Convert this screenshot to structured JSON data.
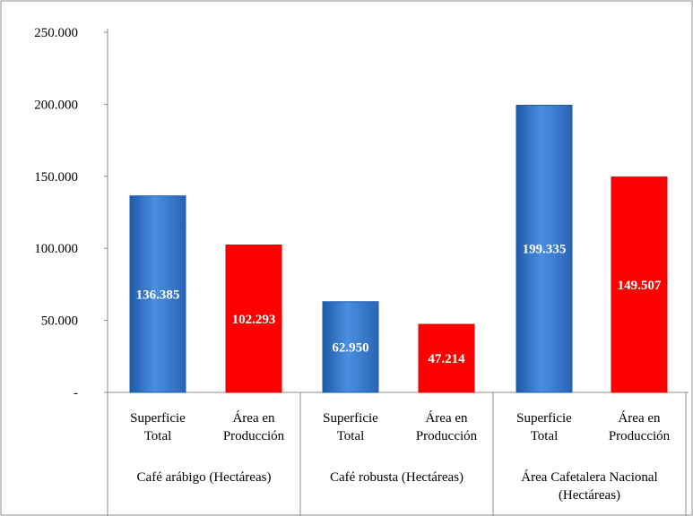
{
  "chart_data": {
    "type": "bar",
    "title": "",
    "xlabel": "",
    "ylabel": "",
    "ylim": [
      0,
      250000
    ],
    "yticks": [
      0,
      50000,
      100000,
      150000,
      200000,
      250000
    ],
    "ytick_labels": [
      "-",
      "50.000",
      "100.000",
      "150.000",
      "200.000",
      "250.000"
    ],
    "grid": false,
    "legend": "none",
    "groups": [
      {
        "label": "Café arábigo (Hectáreas)",
        "label_lines": [
          "Café arábigo (Hectáreas)"
        ],
        "bars": [
          {
            "category_lines": [
              "Superficie",
              "Total"
            ],
            "value": 136385,
            "data_label": "136.385",
            "color": "#2e74c8"
          },
          {
            "category_lines": [
              "Área en",
              "Producción"
            ],
            "value": 102293,
            "data_label": "102.293",
            "color": "#ff0000"
          }
        ]
      },
      {
        "label": "Café robusta (Hectáreas)",
        "label_lines": [
          "Café robusta (Hectáreas)"
        ],
        "bars": [
          {
            "category_lines": [
              "Superficie",
              "Total"
            ],
            "value": 62950,
            "data_label": "62.950",
            "color": "#2e74c8"
          },
          {
            "category_lines": [
              "Área en",
              "Producción"
            ],
            "value": 47214,
            "data_label": "47.214",
            "color": "#ff0000"
          }
        ]
      },
      {
        "label": "Área Cafetalera Nacional (Hectáreas)",
        "label_lines": [
          "Área Cafetalera Nacional",
          "(Hectáreas)"
        ],
        "bars": [
          {
            "category_lines": [
              "Superficie",
              "Total"
            ],
            "value": 199335,
            "data_label": "199.335",
            "color": "#2e74c8"
          },
          {
            "category_lines": [
              "Área en",
              "Producción"
            ],
            "value": 149507,
            "data_label": "149.507",
            "color": "#ff0000"
          }
        ]
      }
    ]
  },
  "colors": {
    "blue_bar": "#2e74c8",
    "red_bar": "#ff0000",
    "axis": "#8c8c8c",
    "frame": "#8c8c8c"
  }
}
